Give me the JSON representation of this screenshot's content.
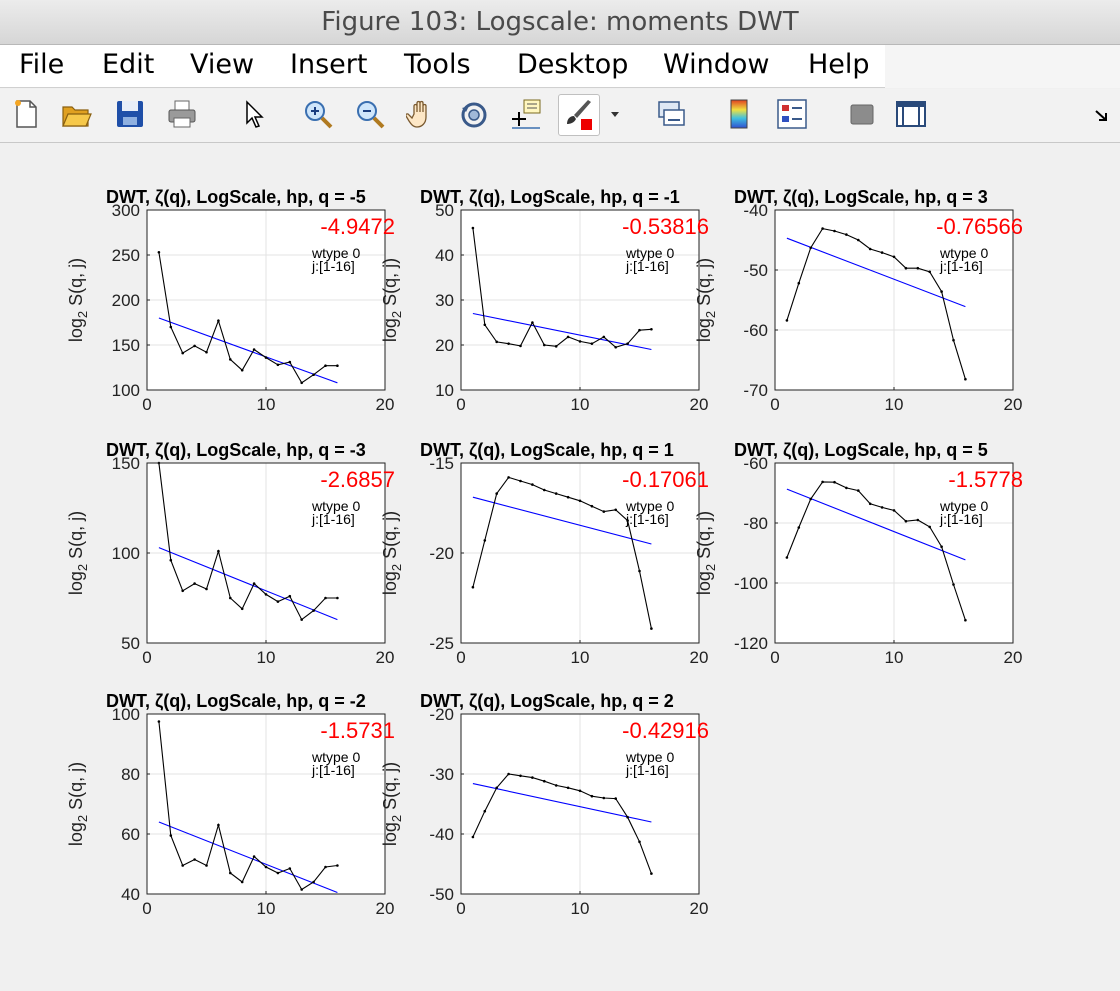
{
  "window": {
    "title": "Figure 103: Logscale: moments DWT"
  },
  "menu": [
    "File",
    "Edit",
    "View",
    "Insert",
    "Tools",
    "Desktop",
    "Window",
    "Help"
  ],
  "toolbar": {
    "icons": [
      "new-figure-icon",
      "open-file-icon",
      "save-icon",
      "print-icon",
      "pointer-icon",
      "zoom-in-icon",
      "zoom-out-icon",
      "pan-hand-icon",
      "rotate-3d-icon",
      "data-cursor-icon",
      "brush-icon",
      "brush-dropdown-icon",
      "link-plot-icon",
      "colorbar-icon",
      "legend-icon",
      "hide-plot-tools-icon",
      "show-plot-tools-icon",
      "dock-icon"
    ]
  },
  "colors": {
    "data_line": "#000000",
    "fit_line": "#0000ff",
    "slope_text": "#ff0000"
  },
  "chart_data": [
    {
      "type": "line",
      "title": "DWT, ζ(q), LogScale, hp, q = -5",
      "ylabel": "log2 S(q, j)",
      "xlim": [
        0,
        20
      ],
      "ylim": [
        100,
        300
      ],
      "xticks": [
        0,
        10,
        20
      ],
      "yticks": [
        100,
        150,
        200,
        250,
        300
      ],
      "grid": true,
      "annotation": "-4.9472",
      "note": [
        "wtype 0",
        "j:[1-16]"
      ],
      "x": [
        1,
        2,
        3,
        4,
        5,
        6,
        7,
        8,
        9,
        10,
        11,
        12,
        13,
        14,
        15,
        16
      ],
      "y": [
        253,
        170,
        141,
        149,
        142,
        177,
        134,
        122,
        145,
        136,
        128,
        131,
        108,
        117,
        127,
        127
      ],
      "fit": {
        "x": [
          1,
          16
        ],
        "y": [
          180,
          108
        ]
      }
    },
    {
      "type": "line",
      "title": "DWT, ζ(q), LogScale, hp, q = -1",
      "ylabel": "log2 S(q, j)",
      "xlim": [
        0,
        20
      ],
      "ylim": [
        10,
        50
      ],
      "xticks": [
        0,
        10,
        20
      ],
      "yticks": [
        10,
        20,
        30,
        40,
        50
      ],
      "grid": true,
      "annotation": "-0.53816",
      "note": [
        "wtype 0",
        "j:[1-16]"
      ],
      "x": [
        1,
        2,
        3,
        4,
        5,
        6,
        7,
        8,
        9,
        10,
        11,
        12,
        13,
        14,
        15,
        16
      ],
      "y": [
        46,
        24.5,
        20.7,
        20.3,
        19.8,
        25,
        20,
        19.7,
        21.8,
        20.8,
        20.3,
        21.8,
        19.5,
        20.3,
        23.3,
        23.5
      ],
      "fit": {
        "x": [
          1,
          16
        ],
        "y": [
          27,
          19
        ]
      }
    },
    {
      "type": "line",
      "title": "DWT, ζ(q), LogScale, hp, q = 3",
      "ylabel": "log2 S(q, j)",
      "xlim": [
        0,
        20
      ],
      "ylim": [
        -70,
        -40
      ],
      "xticks": [
        0,
        10,
        20
      ],
      "yticks": [
        -70,
        -60,
        -50,
        -40
      ],
      "grid": true,
      "annotation": "-0.76566",
      "note": [
        "wtype 0",
        "j:[1-16]"
      ],
      "x": [
        1,
        2,
        3,
        4,
        5,
        6,
        7,
        8,
        9,
        10,
        11,
        12,
        13,
        14,
        15,
        16
      ],
      "y": [
        -58.4,
        -52.2,
        -46.3,
        -43.1,
        -43.5,
        -44.1,
        -45,
        -46.5,
        -47.1,
        -47.8,
        -49.7,
        -49.7,
        -50.3,
        -53.6,
        -61.7,
        -68.2
      ],
      "fit": {
        "x": [
          1,
          16
        ],
        "y": [
          -44.7,
          -56.1
        ]
      }
    },
    {
      "type": "line",
      "title": "DWT, ζ(q), LogScale, hp, q = -3",
      "ylabel": "log2 S(q, j)",
      "xlim": [
        0,
        20
      ],
      "ylim": [
        50,
        150
      ],
      "xticks": [
        0,
        10,
        20
      ],
      "yticks": [
        50,
        100,
        150
      ],
      "grid": true,
      "annotation": "-2.6857",
      "note": [
        "wtype 0",
        "j:[1-16]"
      ],
      "x": [
        1,
        2,
        3,
        4,
        5,
        6,
        7,
        8,
        9,
        10,
        11,
        12,
        13,
        14,
        15,
        16
      ],
      "y": [
        150,
        96,
        79,
        83,
        80,
        101,
        75,
        69,
        83,
        77,
        73,
        76,
        63,
        68,
        75,
        75
      ],
      "fit": {
        "x": [
          1,
          16
        ],
        "y": [
          103,
          63
        ]
      }
    },
    {
      "type": "line",
      "title": "DWT, ζ(q), LogScale, hp, q = 1",
      "ylabel": "log2 S(q, j)",
      "xlim": [
        0,
        20
      ],
      "ylim": [
        -25,
        -15
      ],
      "xticks": [
        0,
        10,
        20
      ],
      "yticks": [
        -25,
        -20,
        -15
      ],
      "grid": true,
      "annotation": "-0.17061",
      "note": [
        "wtype 0",
        "j:[1-16]"
      ],
      "x": [
        1,
        2,
        3,
        4,
        5,
        6,
        7,
        8,
        9,
        10,
        11,
        12,
        13,
        14,
        15,
        16
      ],
      "y": [
        -21.9,
        -19.3,
        -16.7,
        -15.8,
        -16,
        -16.2,
        -16.5,
        -16.7,
        -16.9,
        -17.1,
        -17.4,
        -17.7,
        -17.6,
        -18.2,
        -21,
        -24.2
      ],
      "fit": {
        "x": [
          1,
          16
        ],
        "y": [
          -16.9,
          -19.5
        ]
      }
    },
    {
      "type": "line",
      "title": "DWT, ζ(q), LogScale, hp, q = 5",
      "ylabel": "log2 S(q, j)",
      "xlim": [
        0,
        20
      ],
      "ylim": [
        -120,
        -60
      ],
      "xticks": [
        0,
        10,
        20
      ],
      "yticks": [
        -120,
        -100,
        -80,
        -60
      ],
      "grid": true,
      "annotation": "-1.5778",
      "note": [
        "wtype 0",
        "j:[1-16]"
      ],
      "x": [
        1,
        2,
        3,
        4,
        5,
        6,
        7,
        8,
        9,
        10,
        11,
        12,
        13,
        14,
        15,
        16
      ],
      "y": [
        -91.5,
        -81.5,
        -72,
        -66.3,
        -66.4,
        -68.3,
        -69.2,
        -73.6,
        -74.8,
        -75.8,
        -79.4,
        -79,
        -81.3,
        -87.9,
        -100.5,
        -112.4
      ],
      "fit": {
        "x": [
          1,
          16
        ],
        "y": [
          -68.7,
          -92.3
        ]
      }
    },
    {
      "type": "line",
      "title": "DWT, ζ(q), LogScale, hp, q = -2",
      "ylabel": "log2 S(q, j)",
      "xlim": [
        0,
        20
      ],
      "ylim": [
        40,
        100
      ],
      "xticks": [
        0,
        10,
        20
      ],
      "yticks": [
        40,
        60,
        80,
        100
      ],
      "grid": true,
      "annotation": "-1.5731",
      "note": [
        "wtype 0",
        "j:[1-16]"
      ],
      "x": [
        1,
        2,
        3,
        4,
        5,
        6,
        7,
        8,
        9,
        10,
        11,
        12,
        13,
        14,
        15,
        16
      ],
      "y": [
        97.5,
        59.5,
        49.5,
        51.5,
        49.5,
        63,
        47,
        44,
        52.5,
        49,
        47,
        48.5,
        41.5,
        44,
        49,
        49.5
      ],
      "fit": {
        "x": [
          1,
          16
        ],
        "y": [
          64,
          40.5
        ]
      }
    },
    {
      "type": "line",
      "title": "DWT, ζ(q), LogScale, hp, q = 2",
      "ylabel": "log2 S(q, j)",
      "xlim": [
        0,
        20
      ],
      "ylim": [
        -50,
        -20
      ],
      "xticks": [
        0,
        10,
        20
      ],
      "yticks": [
        -50,
        -40,
        -30,
        -20
      ],
      "grid": true,
      "annotation": "-0.42916",
      "note": [
        "wtype 0",
        "j:[1-16]"
      ],
      "x": [
        1,
        2,
        3,
        4,
        5,
        6,
        7,
        8,
        9,
        10,
        11,
        12,
        13,
        14,
        15,
        16
      ],
      "y": [
        -40.5,
        -36.2,
        -32.3,
        -30,
        -30.3,
        -30.6,
        -31.2,
        -31.9,
        -32.3,
        -32.8,
        -33.7,
        -34,
        -34.1,
        -37.2,
        -41.3,
        -46.6
      ],
      "fit": {
        "x": [
          1,
          16
        ],
        "y": [
          -31.6,
          -38
        ]
      }
    }
  ]
}
